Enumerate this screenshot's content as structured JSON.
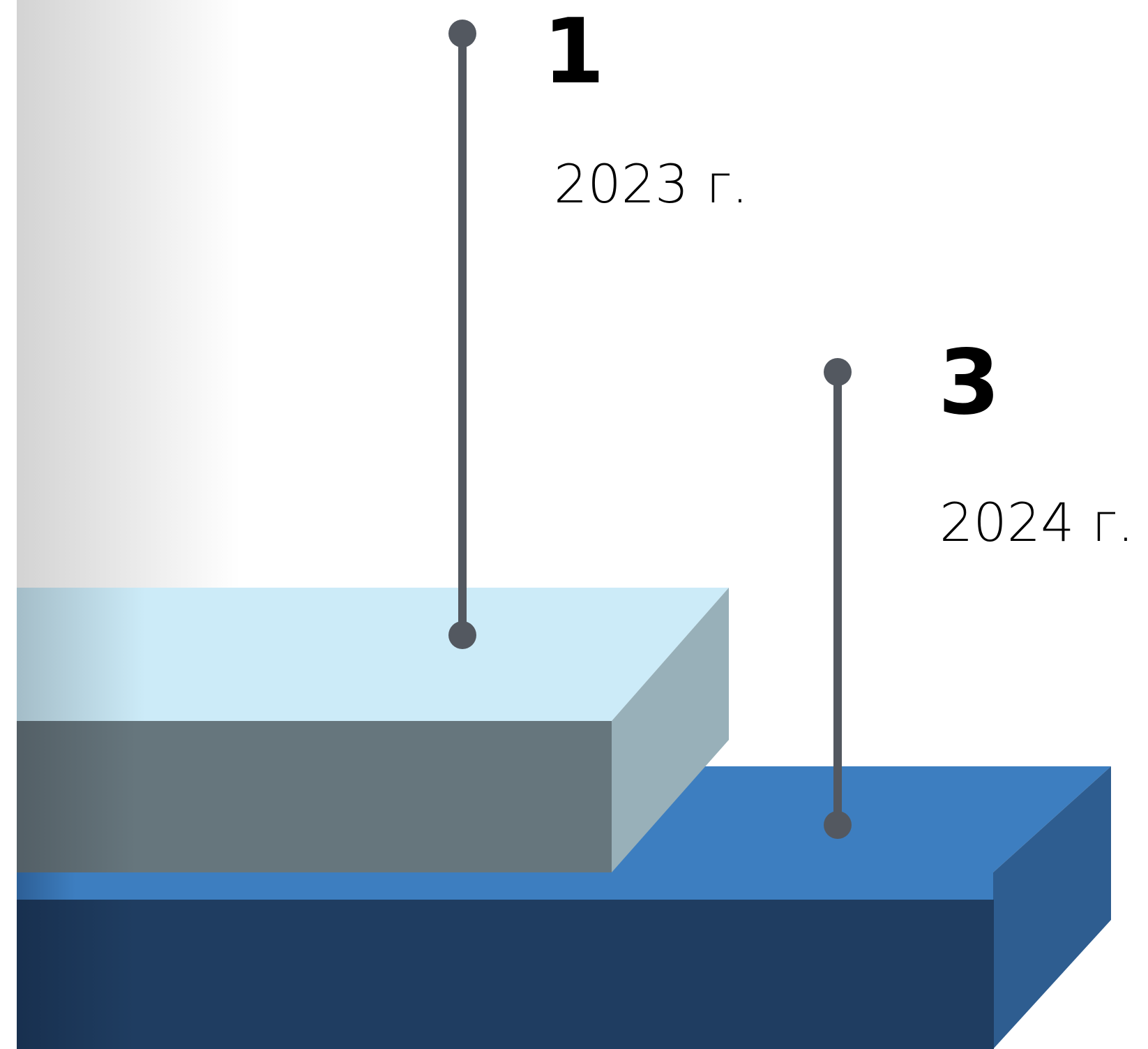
{
  "chart_data": {
    "type": "bar",
    "categories": [
      "2023 г.",
      "2024 г."
    ],
    "values": [
      1,
      3
    ],
    "title": "",
    "xlabel": "",
    "ylabel": "",
    "colors": {
      "2023 г.": {
        "top": "#ccebf8",
        "front": "#66767d",
        "side": "#98b0b9"
      },
      "2024 г.": {
        "top": "#3d7ec0",
        "front": "#1f3d61",
        "side": "#2e5d90"
      },
      "leader": "#535860",
      "backdrop_fade": "#d3d3d3"
    }
  }
}
